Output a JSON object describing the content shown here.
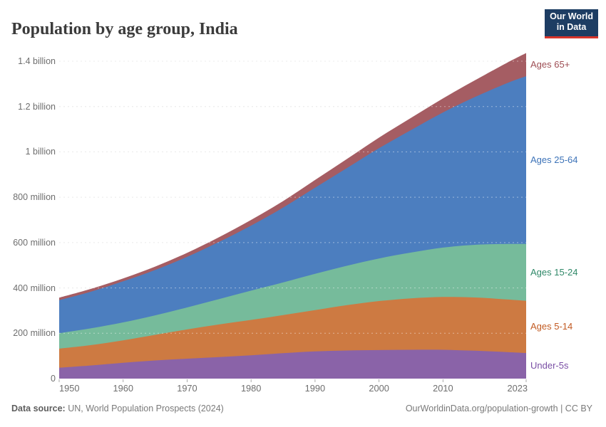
{
  "header": {
    "title": "Population by age group, India",
    "logo": {
      "line1": "Our World",
      "line2": "in Data",
      "bg_color": "#1d3d63",
      "bar_color": "#d7352b"
    }
  },
  "footer": {
    "source_label": "Data source:",
    "source_text": " UN, World Population Prospects (2024)",
    "attribution": "OurWorldinData.org/population-growth | CC BY"
  },
  "colors": {
    "background": "#ffffff",
    "title_text": "#3b3b3b",
    "axis_text": "#6e6e6e",
    "gridline": "#dcdcdc",
    "tick": "#ababab"
  },
  "chart_data": {
    "type": "area",
    "stacked": true,
    "title": "Population by age group, India",
    "xlabel": "",
    "ylabel": "",
    "xlim": [
      1950,
      2023
    ],
    "ylim_millions": [
      0,
      1400
    ],
    "grid": true,
    "legend_position": "right-edge-labels",
    "x": [
      1950,
      1955,
      1960,
      1965,
      1970,
      1975,
      1980,
      1985,
      1990,
      1995,
      2000,
      2005,
      2010,
      2015,
      2020,
      2023
    ],
    "series": [
      {
        "id": "under-5s",
        "name": "Under-5s",
        "fill_color": "#8a63a8",
        "label_color": "#7a4fa5",
        "values": [
          48,
          58,
          70,
          80,
          88,
          95,
          103,
          112,
          120,
          124,
          126,
          127,
          127,
          123,
          117,
          113
        ]
      },
      {
        "id": "ages-5-14",
        "name": "Ages 5-14",
        "fill_color": "#cd7a42",
        "label_color": "#c25b23",
        "values": [
          84,
          90,
          99,
          113,
          129,
          144,
          156,
          168,
          182,
          200,
          216,
          227,
          233,
          235,
          232,
          230
        ]
      },
      {
        "id": "ages-15-24",
        "name": "Ages 15-24",
        "fill_color": "#76bb9b",
        "label_color": "#2f8868",
        "values": [
          68,
          74,
          79,
          86,
          97,
          112,
          129,
          144,
          160,
          174,
          188,
          202,
          218,
          232,
          245,
          251
        ]
      },
      {
        "id": "ages-25-64",
        "name": "Ages 25-64",
        "fill_color": "#4c7ebf",
        "label_color": "#3d73b8",
        "values": [
          146,
          162,
          181,
          200,
          223,
          252,
          287,
          330,
          380,
          431,
          486,
          540,
          596,
          652,
          709,
          740
        ]
      },
      {
        "id": "ages-65plus",
        "name": "Ages 65+",
        "fill_color": "#a55d63",
        "label_color": "#9e4e54",
        "values": [
          11,
          12,
          13,
          15,
          18,
          21,
          25,
          29,
          34,
          40,
          47,
          54,
          62,
          74,
          90,
          102
        ]
      }
    ],
    "yticks": [
      {
        "value_millions": 0,
        "label": "0"
      },
      {
        "value_millions": 200,
        "label": "200 million"
      },
      {
        "value_millions": 400,
        "label": "400 million"
      },
      {
        "value_millions": 600,
        "label": "600 million"
      },
      {
        "value_millions": 800,
        "label": "800 million"
      },
      {
        "value_millions": 1000,
        "label": "1 billion"
      },
      {
        "value_millions": 1200,
        "label": "1.2 billion"
      },
      {
        "value_millions": 1400,
        "label": "1.4 billion"
      }
    ],
    "xticks": [
      {
        "year": 1950,
        "label": "1950"
      },
      {
        "year": 1960,
        "label": "1960"
      },
      {
        "year": 1970,
        "label": "1970"
      },
      {
        "year": 1980,
        "label": "1980"
      },
      {
        "year": 1990,
        "label": "1990"
      },
      {
        "year": 2000,
        "label": "2000"
      },
      {
        "year": 2010,
        "label": "2010"
      },
      {
        "year": 2023,
        "label": "2023"
      }
    ]
  }
}
